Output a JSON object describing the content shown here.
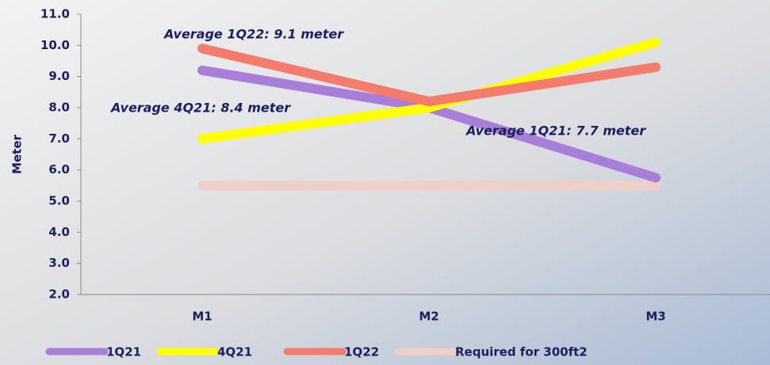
{
  "chart_data": {
    "type": "line",
    "y_axis_label": "Meter",
    "categories": [
      "M1",
      "M2",
      "M3"
    ],
    "series": [
      {
        "name": "1Q21",
        "color": "#a97ed8",
        "values": [
          9.2,
          8.0,
          5.75
        ]
      },
      {
        "name": "4Q21",
        "color": "#ffff00",
        "values": [
          7.0,
          8.0,
          10.1
        ]
      },
      {
        "name": "1Q22",
        "color": "#f47c6c",
        "values": [
          9.9,
          8.2,
          9.3
        ]
      },
      {
        "name": "Required for 300ft2",
        "color": "#f0cfc8",
        "values": [
          5.5,
          5.5,
          5.5
        ]
      }
    ],
    "annotations": [
      "Average 1Q22: 9.1 meter",
      "Average 4Q21: 8.4 meter",
      "Average 1Q21: 7.7 meter"
    ],
    "ylim": [
      2,
      11
    ],
    "yticks": [
      {
        "value": 2,
        "label": "2.0"
      },
      {
        "value": 3,
        "label": "3.0"
      },
      {
        "value": 4,
        "label": "4.0"
      },
      {
        "value": 5,
        "label": "5.0"
      },
      {
        "value": 6,
        "label": "6.0"
      },
      {
        "value": 7,
        "label": "7.0"
      },
      {
        "value": 8,
        "label": "8.0"
      },
      {
        "value": 9,
        "label": "9.0"
      },
      {
        "value": 10,
        "label": "10.0"
      },
      {
        "value": 11,
        "label": "11.0"
      }
    ],
    "grid": false,
    "legend": "bottom"
  }
}
